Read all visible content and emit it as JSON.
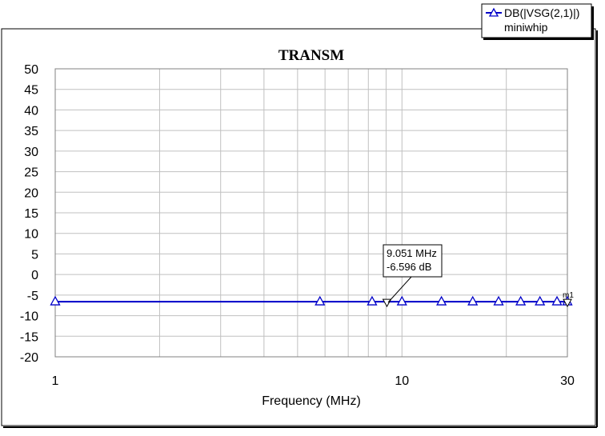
{
  "chart_data": {
    "type": "line",
    "title": "TRANSM",
    "xlabel": "Frequency (MHz)",
    "ylabel": "",
    "x_scale": "log",
    "xlim": [
      1,
      30
    ],
    "ylim": [
      -20,
      50
    ],
    "x_tick_labels": [
      "1",
      "10",
      "30"
    ],
    "y_ticks": [
      50,
      45,
      40,
      35,
      30,
      25,
      20,
      15,
      10,
      5,
      0,
      -5,
      -10,
      -15,
      -20
    ],
    "grid": true,
    "legend_position": "top-right",
    "series": [
      {
        "name": "DB(|VSG(2,1)|)",
        "source": "miniwhip",
        "color": "#0000c8",
        "marker": "triangle",
        "x": [
          1,
          30
        ],
        "y": [
          -6.6,
          -6.6
        ],
        "marker_x": [
          1,
          5.8,
          8.2,
          10,
          13,
          16,
          19,
          22,
          25,
          28,
          30
        ]
      }
    ],
    "markers": [
      {
        "name": "m1",
        "x": 9.051,
        "y": -6.596,
        "label_freq": "9.051 MHz",
        "label_val": "-6.596 dB"
      },
      {
        "name": "m1",
        "x": 30,
        "y": -6.6
      }
    ]
  },
  "legend": {
    "series_label": "DB(|VSG(2,1)|)",
    "source_label": "miniwhip"
  },
  "marker_label": {
    "line1": "9.051 MHz",
    "line2": "-6.596 dB"
  },
  "end_marker_label": "m1"
}
